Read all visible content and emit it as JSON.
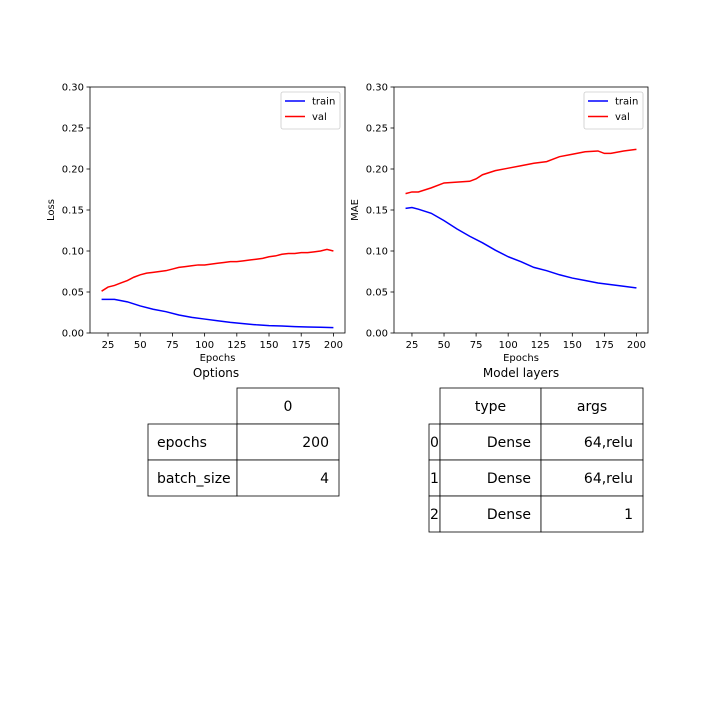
{
  "chart_data": [
    {
      "type": "line",
      "xlabel": "Epochs",
      "ylabel": "Loss",
      "xlim": [
        11,
        209
      ],
      "ylim": [
        0,
        0.3
      ],
      "xticks": [
        25,
        50,
        75,
        100,
        125,
        150,
        175,
        200
      ],
      "yticks": [
        0.0,
        0.05,
        0.1,
        0.15,
        0.2,
        0.25,
        0.3
      ],
      "ytick_labels": [
        "0.00",
        "0.05",
        "0.10",
        "0.15",
        "0.20",
        "0.25",
        "0.30"
      ],
      "legend": "top-right",
      "series": [
        {
          "name": "train",
          "color": "#0000ff",
          "x": [
            20,
            30,
            40,
            50,
            60,
            70,
            80,
            90,
            100,
            110,
            120,
            130,
            140,
            150,
            160,
            170,
            180,
            190,
            200
          ],
          "y": [
            0.041,
            0.041,
            0.038,
            0.033,
            0.029,
            0.026,
            0.022,
            0.019,
            0.017,
            0.015,
            0.013,
            0.0115,
            0.01,
            0.009,
            0.0085,
            0.0078,
            0.0073,
            0.007,
            0.0065
          ]
        },
        {
          "name": "val",
          "color": "#ff0000",
          "x": [
            20,
            25,
            30,
            35,
            40,
            45,
            50,
            55,
            60,
            65,
            70,
            75,
            80,
            85,
            90,
            95,
            100,
            105,
            110,
            115,
            120,
            125,
            130,
            135,
            140,
            145,
            150,
            155,
            160,
            165,
            170,
            175,
            180,
            185,
            190,
            195,
            200
          ],
          "y": [
            0.051,
            0.056,
            0.058,
            0.061,
            0.064,
            0.068,
            0.071,
            0.073,
            0.074,
            0.075,
            0.076,
            0.078,
            0.08,
            0.081,
            0.082,
            0.083,
            0.083,
            0.084,
            0.085,
            0.086,
            0.087,
            0.087,
            0.088,
            0.089,
            0.09,
            0.091,
            0.093,
            0.094,
            0.096,
            0.097,
            0.097,
            0.098,
            0.098,
            0.099,
            0.1,
            0.102,
            0.1
          ]
        }
      ]
    },
    {
      "type": "line",
      "xlabel": "Epochs",
      "ylabel": "MAE",
      "xlim": [
        11,
        209
      ],
      "ylim": [
        0,
        0.3
      ],
      "xticks": [
        25,
        50,
        75,
        100,
        125,
        150,
        175,
        200
      ],
      "yticks": [
        0.0,
        0.05,
        0.1,
        0.15,
        0.2,
        0.25,
        0.3
      ],
      "ytick_labels": [
        "0.00",
        "0.05",
        "0.10",
        "0.15",
        "0.20",
        "0.25",
        "0.30"
      ],
      "legend": "top-right",
      "series": [
        {
          "name": "train",
          "color": "#0000ff",
          "x": [
            20,
            25,
            30,
            40,
            50,
            60,
            70,
            80,
            90,
            100,
            110,
            120,
            130,
            140,
            150,
            160,
            170,
            180,
            190,
            200
          ],
          "y": [
            0.152,
            0.153,
            0.151,
            0.146,
            0.137,
            0.127,
            0.118,
            0.11,
            0.101,
            0.093,
            0.087,
            0.08,
            0.076,
            0.071,
            0.067,
            0.064,
            0.061,
            0.059,
            0.057,
            0.055
          ]
        },
        {
          "name": "val",
          "color": "#ff0000",
          "x": [
            20,
            25,
            30,
            40,
            50,
            60,
            70,
            75,
            80,
            90,
            100,
            110,
            120,
            130,
            140,
            150,
            160,
            170,
            175,
            180,
            190,
            200
          ],
          "y": [
            0.17,
            0.172,
            0.172,
            0.177,
            0.183,
            0.184,
            0.185,
            0.188,
            0.193,
            0.198,
            0.201,
            0.204,
            0.207,
            0.209,
            0.215,
            0.218,
            0.221,
            0.222,
            0.219,
            0.219,
            0.222,
            0.224
          ]
        }
      ]
    },
    {
      "type": "table",
      "title": "Options",
      "columns": [
        "0"
      ],
      "rows": [
        {
          "label": "epochs",
          "values": [
            "200"
          ]
        },
        {
          "label": "batch_size",
          "values": [
            "4"
          ]
        }
      ]
    },
    {
      "type": "table",
      "title": "Model layers",
      "columns": [
        "type",
        "args"
      ],
      "rows": [
        {
          "label": "0",
          "values": [
            "Dense",
            "64,relu"
          ]
        },
        {
          "label": "1",
          "values": [
            "Dense",
            "64,relu"
          ]
        },
        {
          "label": "2",
          "values": [
            "Dense",
            "1"
          ]
        }
      ]
    }
  ]
}
